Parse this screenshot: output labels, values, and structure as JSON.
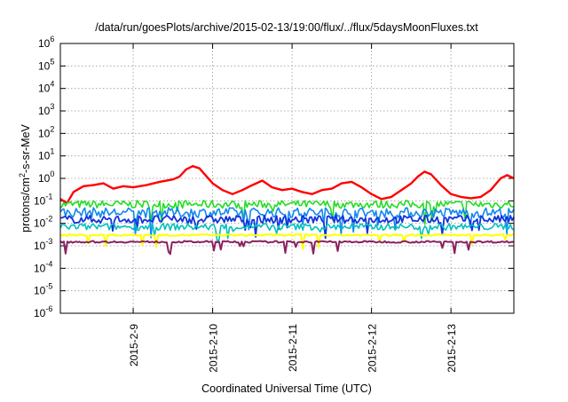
{
  "chart_data": {
    "type": "line",
    "title": "/data/run/goesPlots/archive/2015-02-13/19:00/flux/../flux/5daysMoonFluxes.txt",
    "xlabel": "Coordinated Universal Time (UTC)",
    "ylabel": "protons/cm2-s-sr-MeV",
    "ylabel_parts": {
      "before": "protons/cm",
      "sup": "2",
      "after": "-s-sr-MeV"
    },
    "y_scale": "log",
    "ylim": [
      1e-06,
      1000000.0
    ],
    "y_ticks": [
      {
        "base": "10",
        "exp": "-6",
        "value": 1e-06
      },
      {
        "base": "10",
        "exp": "-5",
        "value": 1e-05
      },
      {
        "base": "10",
        "exp": "-4",
        "value": 0.0001
      },
      {
        "base": "10",
        "exp": "-3",
        "value": 0.001
      },
      {
        "base": "10",
        "exp": "-2",
        "value": 0.01
      },
      {
        "base": "10",
        "exp": "-1",
        "value": 0.1
      },
      {
        "base": "10",
        "exp": "0",
        "value": 1
      },
      {
        "base": "10",
        "exp": "1",
        "value": 10
      },
      {
        "base": "10",
        "exp": "2",
        "value": 100
      },
      {
        "base": "10",
        "exp": "3",
        "value": 1000
      },
      {
        "base": "10",
        "exp": "4",
        "value": 10000
      },
      {
        "base": "10",
        "exp": "5",
        "value": 100000
      },
      {
        "base": "10",
        "exp": "6",
        "value": 1000000
      }
    ],
    "xlim": [
      "2015-02-08T02:00",
      "2015-02-13T19:00"
    ],
    "x_ticks": [
      {
        "label": "2015-2-9",
        "value": "2015-02-09T00:00"
      },
      {
        "label": "2015-2-10",
        "value": "2015-02-10T00:00"
      },
      {
        "label": "2015-2-11",
        "value": "2015-02-11T00:00"
      },
      {
        "label": "2015-2-12",
        "value": "2015-02-12T00:00"
      },
      {
        "label": "2015-2-13",
        "value": "2015-02-13T00:00"
      }
    ],
    "grid": true,
    "series": [
      {
        "color": "#ff0000",
        "width": 2.4,
        "x": [
          "2015-02-08T02:00",
          "2015-02-08T04:00",
          "2015-02-08T06:00",
          "2015-02-08T09:00",
          "2015-02-08T12:00",
          "2015-02-08T15:00",
          "2015-02-08T18:00",
          "2015-02-08T21:00",
          "2015-02-09T00:00",
          "2015-02-09T04:00",
          "2015-02-09T08:00",
          "2015-02-09T12:00",
          "2015-02-09T14:00",
          "2015-02-09T16:00",
          "2015-02-09T18:00",
          "2015-02-09T20:00",
          "2015-02-10T00:00",
          "2015-02-10T03:00",
          "2015-02-10T06:00",
          "2015-02-10T09:00",
          "2015-02-10T12:00",
          "2015-02-10T15:00",
          "2015-02-10T18:00",
          "2015-02-10T21:00",
          "2015-02-11T00:00",
          "2015-02-11T03:00",
          "2015-02-11T06:00",
          "2015-02-11T09:00",
          "2015-02-11T12:00",
          "2015-02-11T15:00",
          "2015-02-11T18:00",
          "2015-02-11T21:00",
          "2015-02-12T00:00",
          "2015-02-12T03:00",
          "2015-02-12T06:00",
          "2015-02-12T09:00",
          "2015-02-12T12:00",
          "2015-02-12T14:00",
          "2015-02-12T16:00",
          "2015-02-12T18:00",
          "2015-02-12T21:00",
          "2015-02-13T00:00",
          "2015-02-13T03:00",
          "2015-02-13T06:00",
          "2015-02-13T09:00",
          "2015-02-13T12:00",
          "2015-02-13T15:00",
          "2015-02-13T17:00",
          "2015-02-13T19:00"
        ],
        "values": [
          0.12,
          0.08,
          0.25,
          0.45,
          0.5,
          0.6,
          0.35,
          0.45,
          0.4,
          0.5,
          0.7,
          0.9,
          1.2,
          2.5,
          3.5,
          2.8,
          0.6,
          0.3,
          0.2,
          0.3,
          0.5,
          0.8,
          0.4,
          0.3,
          0.35,
          0.25,
          0.2,
          0.3,
          0.35,
          0.6,
          0.7,
          0.4,
          0.2,
          0.12,
          0.15,
          0.3,
          0.6,
          1.2,
          2.0,
          1.5,
          0.5,
          0.2,
          0.15,
          0.13,
          0.15,
          0.3,
          1.0,
          1.4,
          1.0
        ]
      },
      {
        "color": "#22dd22",
        "width": 1.6,
        "level": 0.07,
        "spread": 0.35,
        "dips": 0.6
      },
      {
        "color": "#1188ee",
        "width": 1.6,
        "level": 0.03,
        "spread": 0.45,
        "dips": 0.7
      },
      {
        "color": "#1133dd",
        "width": 1.8,
        "level": 0.015,
        "spread": 0.35,
        "dips": 0.5
      },
      {
        "color": "#00bfbf",
        "width": 1.6,
        "level": 0.007,
        "spread": 0.3,
        "dips": 0.5
      },
      {
        "color": "#ffff00",
        "width": 2.0,
        "level": 0.003,
        "spread": 0.08,
        "dips": 0.5
      },
      {
        "color": "#8b2060",
        "width": 2.0,
        "level": 0.0015,
        "spread": 0.08,
        "dips": 0.4
      }
    ]
  }
}
